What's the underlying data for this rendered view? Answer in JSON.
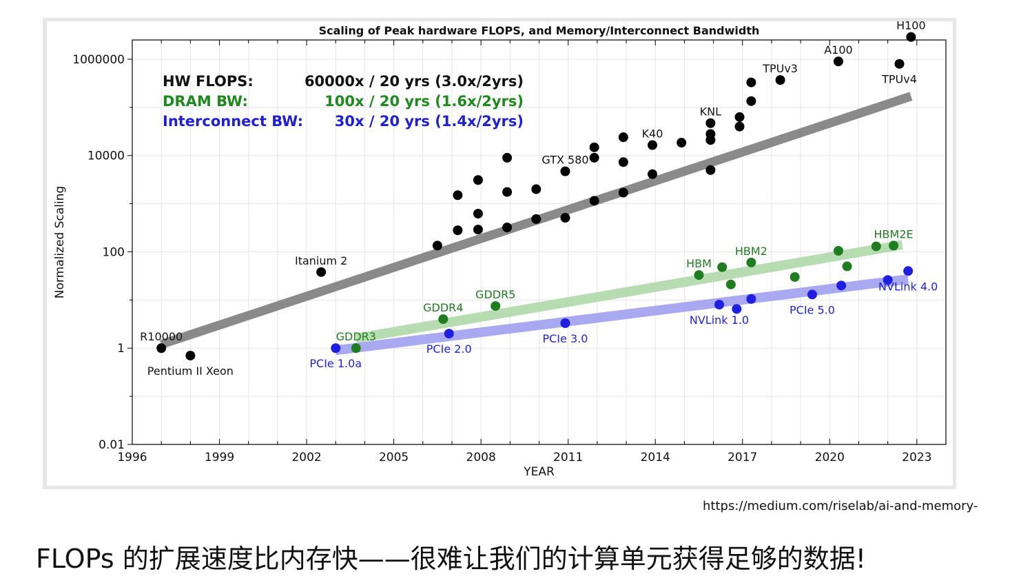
{
  "chart_data": {
    "type": "scatter",
    "title": "Scaling of Peak hardware FLOPS, and Memory/Interconnect Bandwidth",
    "xlabel": "YEAR",
    "ylabel": "Normalized Scaling",
    "xlim": [
      1996,
      2024
    ],
    "ylim_log10": [
      -2,
      6.4
    ],
    "x_ticks": [
      1996,
      1999,
      2002,
      2005,
      2008,
      2011,
      2014,
      2017,
      2020,
      2023
    ],
    "y_ticks": [
      {
        "value": 0.01,
        "label": "0.01"
      },
      {
        "value": 1,
        "label": "1"
      },
      {
        "value": 100,
        "label": "100"
      },
      {
        "value": 10000,
        "label": "10000"
      },
      {
        "value": 1000000,
        "label": "1000000"
      }
    ],
    "legend": [
      {
        "name": "HW FLOPS:",
        "text": "60000x / 20 yrs (3.0x/2yrs)",
        "color": "#111111"
      },
      {
        "name": "DRAM BW:",
        "text": "100x / 20 yrs (1.6x/2yrs)",
        "color": "#1e8a1e"
      },
      {
        "name": "Interconnect BW:",
        "text": "30x / 20 yrs (1.4x/2yrs)",
        "color": "#1f1fd6"
      }
    ],
    "series": [
      {
        "name": "HW FLOPS",
        "color": "#000000",
        "trend_color": "#8a8a8a",
        "trend": [
          [
            1997,
            1.2
          ],
          [
            2022.8,
            170000
          ]
        ],
        "points": [
          [
            1997.0,
            1
          ],
          [
            1998.0,
            0.7
          ],
          [
            2002.5,
            38
          ],
          [
            2006.5,
            135
          ],
          [
            2007.2,
            1500
          ],
          [
            2007.2,
            280
          ],
          [
            2007.9,
            3100
          ],
          [
            2007.9,
            620
          ],
          [
            2007.9,
            290
          ],
          [
            2008.9,
            9000
          ],
          [
            2008.9,
            1750
          ],
          [
            2008.9,
            320
          ],
          [
            2009.9,
            2000
          ],
          [
            2009.9,
            480
          ],
          [
            2010.9,
            4700
          ],
          [
            2010.9,
            510
          ],
          [
            2011.9,
            14800
          ],
          [
            2011.9,
            9000
          ],
          [
            2011.9,
            1150
          ],
          [
            2012.9,
            24000
          ],
          [
            2012.9,
            7300
          ],
          [
            2012.9,
            1700
          ],
          [
            2013.9,
            16500
          ],
          [
            2013.9,
            4100
          ],
          [
            2014.9,
            18500
          ],
          [
            2015.9,
            47000
          ],
          [
            2015.9,
            28000
          ],
          [
            2015.9,
            21000
          ],
          [
            2015.9,
            5000
          ],
          [
            2016.9,
            63000
          ],
          [
            2016.9,
            40000
          ],
          [
            2017.3,
            135000
          ],
          [
            2017.3,
            330000
          ],
          [
            2018.3,
            370000
          ],
          [
            2020.3,
            900000
          ],
          [
            2022.4,
            800000
          ],
          [
            2022.8,
            2900000
          ]
        ],
        "labels": [
          {
            "text": "R10000",
            "x": 1997.0,
            "y": 1,
            "pos": "above"
          },
          {
            "text": "Pentium II Xeon",
            "x": 1998.0,
            "y": 0.7,
            "pos": "below"
          },
          {
            "text": "Itanium 2",
            "x": 2002.5,
            "y": 38,
            "pos": "above"
          },
          {
            "text": "GTX 580",
            "x": 2010.9,
            "y": 4700,
            "pos": "above"
          },
          {
            "text": "K40",
            "x": 2013.9,
            "y": 16500,
            "pos": "above"
          },
          {
            "text": "KNL",
            "x": 2015.9,
            "y": 47000,
            "pos": "above"
          },
          {
            "text": "TPUv3",
            "x": 2018.3,
            "y": 370000,
            "pos": "above"
          },
          {
            "text": "A100",
            "x": 2020.3,
            "y": 900000,
            "pos": "above"
          },
          {
            "text": "H100",
            "x": 2022.8,
            "y": 2900000,
            "pos": "above"
          },
          {
            "text": "TPUv4",
            "x": 2022.4,
            "y": 800000,
            "pos": "below"
          }
        ]
      },
      {
        "name": "DRAM BW",
        "color": "#1e7d1e",
        "trend_color": "#b7dcb2",
        "trend": [
          [
            2003.7,
            1.6
          ],
          [
            2022.5,
            140
          ]
        ],
        "points": [
          [
            2003.7,
            1
          ],
          [
            2006.7,
            4
          ],
          [
            2008.5,
            7.5
          ],
          [
            2015.5,
            33
          ],
          [
            2016.3,
            48
          ],
          [
            2016.6,
            21
          ],
          [
            2017.3,
            60
          ],
          [
            2018.8,
            30
          ],
          [
            2020.3,
            105
          ],
          [
            2020.6,
            50
          ],
          [
            2021.6,
            130
          ],
          [
            2022.2,
            135
          ]
        ],
        "labels": [
          {
            "text": "GDDR3",
            "x": 2003.7,
            "y": 1,
            "pos": "above"
          },
          {
            "text": "GDDR4",
            "x": 2006.7,
            "y": 4,
            "pos": "above"
          },
          {
            "text": "GDDR5",
            "x": 2008.5,
            "y": 7.5,
            "pos": "above"
          },
          {
            "text": "HBM",
            "x": 2015.5,
            "y": 33,
            "pos": "above"
          },
          {
            "text": "HBM2",
            "x": 2017.3,
            "y": 60,
            "pos": "above"
          },
          {
            "text": "HBM2E",
            "x": 2022.2,
            "y": 135,
            "pos": "above"
          }
        ]
      },
      {
        "name": "Interconnect BW",
        "color": "#1f1fe0",
        "trend_color": "#a9a9f2",
        "trend": [
          [
            2003.0,
            0.9
          ],
          [
            2022.7,
            27
          ]
        ],
        "points": [
          [
            2003.0,
            1
          ],
          [
            2006.9,
            2
          ],
          [
            2010.9,
            3.3
          ],
          [
            2016.2,
            8
          ],
          [
            2016.8,
            6.5
          ],
          [
            2017.3,
            10.5
          ],
          [
            2019.4,
            13
          ],
          [
            2020.4,
            20
          ],
          [
            2022.0,
            26
          ],
          [
            2022.7,
            40
          ]
        ],
        "labels": [
          {
            "text": "PCIe 1.0a",
            "x": 2003.0,
            "y": 1,
            "pos": "below"
          },
          {
            "text": "PCIe 2.0",
            "x": 2006.9,
            "y": 2,
            "pos": "below"
          },
          {
            "text": "PCIe 3.0",
            "x": 2010.9,
            "y": 3.3,
            "pos": "below"
          },
          {
            "text": "NVLink 1.0",
            "x": 2016.2,
            "y": 8,
            "pos": "below"
          },
          {
            "text": "PCIe 5.0",
            "x": 2019.4,
            "y": 13,
            "pos": "below"
          },
          {
            "text": "NVLink 4.0",
            "x": 2022.7,
            "y": 40,
            "pos": "below"
          }
        ]
      }
    ]
  },
  "source_url": "https://medium.com/riselab/ai-and-memory-",
  "caption": "FLOPs 的扩展速度比内存快——很难让我们的计算单元获得足够的数据!"
}
